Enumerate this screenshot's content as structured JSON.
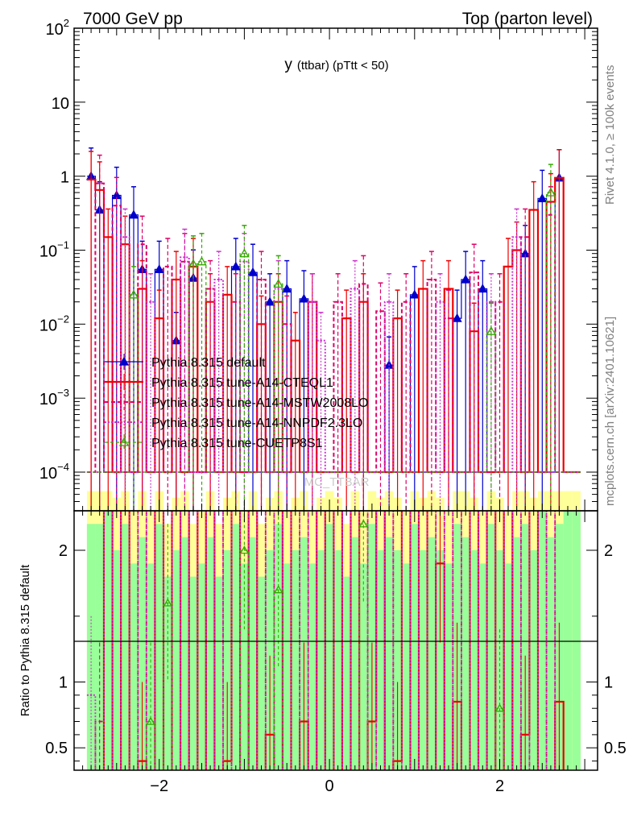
{
  "header": {
    "left": "7000 GeV pp",
    "right": "Top (parton level)"
  },
  "side_labels": {
    "rivet": "Rivet 4.1.0, ≥ 100k events",
    "mcplots": "mcplots.cern.ch [arXiv:2401.10621]"
  },
  "watermark": "MC_TTBAR",
  "chart_data": {
    "type": "line",
    "title": "y (ttbar) (pTtt < 50)",
    "title_main": "y",
    "title_sub": "(ttbar)  (pTtt < 50)",
    "xlabel": "",
    "ylabel": "",
    "ratio_ylabel": "Ratio to Pythia 8.315 default",
    "xlim": [
      -3.0,
      3.15
    ],
    "ylim": [
      3e-05,
      100
    ],
    "yscale": "log",
    "ratio_ylim": [
      0.33,
      2.3
    ],
    "x_ticks": [
      {
        "value": -2,
        "label": "−2"
      },
      {
        "value": 0,
        "label": "0"
      },
      {
        "value": 2,
        "label": "2"
      }
    ],
    "y_ticks": [
      {
        "value": 100,
        "base": "10",
        "exp": "2"
      },
      {
        "value": 10,
        "base": "10",
        "exp": ""
      },
      {
        "value": 1,
        "base": "1",
        "exp": ""
      },
      {
        "value": 0.1,
        "base": "10",
        "exp": "−1"
      },
      {
        "value": 0.01,
        "base": "10",
        "exp": "−2"
      },
      {
        "value": 0.001,
        "base": "10",
        "exp": "−3"
      },
      {
        "value": 0.0001,
        "base": "10",
        "exp": "−4"
      }
    ],
    "ratio_y_ticks": [
      {
        "value": 2,
        "label": "2"
      },
      {
        "value": 1,
        "label": "1"
      },
      {
        "value": 0.5,
        "label": "0.5"
      }
    ],
    "x": [
      -2.8,
      -2.7,
      -2.6,
      -2.5,
      -2.4,
      -2.3,
      -2.2,
      -2.1,
      -2.0,
      -1.9,
      -1.8,
      -1.7,
      -1.6,
      -1.5,
      -1.4,
      -1.3,
      -1.2,
      -1.1,
      -1.0,
      -0.9,
      -0.8,
      -0.7,
      -0.6,
      -0.5,
      -0.4,
      -0.3,
      -0.2,
      -0.1,
      0.0,
      0.1,
      0.2,
      0.3,
      0.4,
      0.5,
      0.6,
      0.7,
      0.8,
      0.9,
      1.0,
      1.1,
      1.2,
      1.3,
      1.4,
      1.5,
      1.6,
      1.7,
      1.8,
      1.9,
      2.0,
      2.1,
      2.2,
      2.3,
      2.4,
      2.5,
      2.6,
      2.7,
      2.8,
      2.9
    ],
    "series": [
      {
        "name": "Pythia 8.315 default",
        "color": "#0000cc",
        "dash": "",
        "width": 1.2,
        "marker": "triangle-filled",
        "values": [
          1.0,
          0.35,
          0.0001,
          0.55,
          0.0001,
          0.3,
          0.055,
          0.0001,
          0.055,
          0.0001,
          0.006,
          0.0001,
          0.042,
          0.0001,
          0.0001,
          0.0001,
          0.0001,
          0.06,
          0.0001,
          0.05,
          0.0001,
          0.02,
          0.0001,
          0.03,
          0.0001,
          0.022,
          0.0001,
          0.0001,
          0.0001,
          0.0001,
          0.0001,
          0.0001,
          0.0001,
          0.0001,
          0.0001,
          0.0028,
          0.0001,
          0.0001,
          0.025,
          0.0001,
          0.0001,
          0.0001,
          0.0001,
          0.012,
          0.04,
          0.0001,
          0.03,
          0.0001,
          0.0001,
          0.0001,
          0.0001,
          0.09,
          0.0001,
          0.5,
          0.0001,
          0.95,
          0.0001,
          0.0001
        ]
      },
      {
        "name": "Pythia 8.315 tune-A14-CTEQL1",
        "color": "#ee0000",
        "dash": "",
        "width": 2.2,
        "marker": "none",
        "values": [
          0.9,
          0.65,
          0.15,
          0.0001,
          0.12,
          0.0001,
          0.03,
          0.0001,
          0.012,
          0.0001,
          0.04,
          0.0001,
          0.06,
          0.0001,
          0.02,
          0.0001,
          0.025,
          0.0001,
          0.0001,
          0.0001,
          0.01,
          0.0001,
          0.02,
          0.0001,
          0.006,
          0.0001,
          0.02,
          0.0001,
          0.0001,
          0.0001,
          0.012,
          0.0001,
          0.02,
          0.0001,
          0.0001,
          0.0001,
          0.012,
          0.0001,
          0.0001,
          0.03,
          0.0001,
          0.0001,
          0.03,
          0.0001,
          0.0001,
          0.008,
          0.0001,
          0.0001,
          0.0001,
          0.06,
          0.1,
          0.0001,
          0.35,
          0.0001,
          0.45,
          0.95,
          0.0001,
          0.0001
        ]
      },
      {
        "name": "Pythia 8.315 tune-A14-MSTW2008LO",
        "color": "#dd0066",
        "dash": "5,3",
        "width": 2.0,
        "marker": "none",
        "values": [
          0.0001,
          0.8,
          0.0001,
          0.4,
          0.0001,
          0.0001,
          0.12,
          0.0001,
          0.0001,
          0.06,
          0.0001,
          0.07,
          0.0001,
          0.0001,
          0.03,
          0.0001,
          0.0001,
          0.02,
          0.0001,
          0.0001,
          0.04,
          0.0001,
          0.0001,
          0.01,
          0.0001,
          0.0001,
          0.02,
          0.0001,
          0.0001,
          0.02,
          0.0001,
          0.0001,
          0.035,
          0.0001,
          0.015,
          0.0001,
          0.0001,
          0.02,
          0.0001,
          0.0001,
          0.04,
          0.0001,
          0.012,
          0.0001,
          0.0001,
          0.05,
          0.0001,
          0.0001,
          0.02,
          0.0001,
          0.0001,
          0.15,
          0.0001,
          0.0001,
          0.3,
          0.0001,
          0.0001,
          0.0001
        ]
      },
      {
        "name": "Pythia 8.315 tune-A14-NNPDF2.3LO",
        "color": "#cc33cc",
        "dash": "2,2",
        "width": 2.0,
        "marker": "none",
        "values": [
          0.0001,
          0.0001,
          0.0001,
          0.0001,
          0.15,
          0.0001,
          0.0001,
          0.02,
          0.0001,
          0.0001,
          0.0001,
          0.08,
          0.0001,
          0.0001,
          0.0001,
          0.04,
          0.0001,
          0.0001,
          0.07,
          0.0001,
          0.0001,
          0.0001,
          0.03,
          0.0001,
          0.0001,
          0.0001,
          0.02,
          0.006,
          0.0001,
          0.0001,
          0.0001,
          0.03,
          0.0001,
          0.0001,
          0.0001,
          0.02,
          0.0001,
          0.0001,
          0.0001,
          0.0001,
          0.0001,
          0.02,
          0.0001,
          0.0001,
          0.0001,
          0.0001,
          0.0001,
          0.02,
          0.0001,
          0.0001,
          0.15,
          0.0001,
          0.0001,
          0.0001,
          0.0001,
          0.0001,
          0.0001,
          0.0001
        ]
      },
      {
        "name": "Pythia 8.315 tune-CUETP8S1",
        "color": "#33aa00",
        "dash": "4,3",
        "width": 1.2,
        "marker": "triangle-open",
        "values": [
          0.0001,
          0.0001,
          0.0001,
          0.0001,
          0.0001,
          0.025,
          0.0001,
          0.0001,
          0.0001,
          0.0001,
          0.0001,
          0.0001,
          0.065,
          0.07,
          0.0001,
          0.0001,
          0.0001,
          0.0001,
          0.09,
          0.0001,
          0.0001,
          0.0001,
          0.035,
          0.0001,
          0.0001,
          0.0001,
          0.0001,
          0.0001,
          0.0001,
          0.0001,
          0.0001,
          0.0001,
          0.0001,
          0.0001,
          0.0001,
          0.0001,
          0.0001,
          0.0001,
          0.0001,
          0.0001,
          0.0001,
          0.0001,
          0.0001,
          0.0001,
          0.0001,
          0.0001,
          0.0001,
          0.008,
          0.0001,
          0.0001,
          0.0001,
          0.0001,
          0.0001,
          0.0001,
          0.6,
          0.0001,
          0.0001,
          0.0001
        ]
      }
    ],
    "ratio_series": [
      {
        "name": "Pythia 8.315 tune-A14-CTEQL1",
        "color": "#ee0000",
        "dash": "",
        "width": 2.2,
        "marker": "none",
        "values": [
          0.3,
          0.3,
          2.4,
          0.3,
          2.4,
          0.3,
          0.4,
          0.3,
          2.4,
          0.3,
          2.4,
          0.3,
          2.4,
          0.3,
          2.4,
          0.3,
          0.4,
          2.4,
          0.3,
          2.4,
          0.3,
          0.6,
          0.3,
          2.4,
          0.3,
          0.7,
          0.3,
          2.4,
          0.3,
          2.4,
          0.3,
          2.4,
          0.3,
          0.7,
          2.4,
          0.3,
          0.4,
          2.4,
          0.3,
          2.4,
          0.3,
          1.9,
          0.3,
          0.85,
          0.3,
          2.4,
          0.3,
          2.4,
          0.3,
          2.4,
          0.3,
          0.6,
          2.4,
          0.3,
          0.3,
          0.85,
          0.3,
          0.3
        ]
      },
      {
        "name": "Pythia 8.315 tune-A14-MSTW2008LO",
        "color": "#dd0066",
        "dash": "5,3",
        "width": 1.8,
        "marker": "none",
        "values": [
          0.3,
          0.7,
          2.4,
          0.3,
          2.4,
          0.3,
          2.4,
          0.3,
          2.4,
          0.3,
          2.4,
          0.3,
          2.4,
          0.3,
          2.4,
          0.3,
          2.4,
          0.3,
          2.4,
          0.3,
          2.4,
          0.3,
          2.4,
          0.3,
          2.4,
          0.3,
          2.4,
          0.3,
          2.4,
          0.3,
          2.4,
          0.3,
          2.4,
          0.3,
          2.4,
          0.3,
          2.4,
          0.3,
          2.4,
          0.3,
          2.4,
          0.3,
          2.4,
          0.3,
          2.4,
          0.3,
          2.4,
          0.3,
          2.4,
          0.3,
          2.4,
          0.3,
          2.4,
          0.3,
          2.4,
          0.3,
          0.3,
          0.3
        ]
      },
      {
        "name": "Pythia 8.315 tune-A14-NNPDF2.3LO",
        "color": "#cc33cc",
        "dash": "2,2",
        "width": 1.8,
        "marker": "none",
        "values": [
          0.9,
          0.3,
          2.4,
          0.3,
          2.4,
          0.3,
          2.4,
          0.3,
          2.4,
          0.3,
          2.4,
          0.3,
          2.4,
          0.3,
          2.4,
          0.3,
          2.4,
          0.3,
          2.4,
          0.3,
          2.4,
          0.3,
          2.4,
          0.3,
          2.4,
          0.3,
          2.4,
          0.3,
          2.4,
          0.3,
          2.4,
          0.3,
          2.4,
          0.3,
          2.4,
          0.3,
          2.4,
          0.3,
          2.4,
          0.3,
          2.4,
          0.3,
          2.4,
          0.3,
          2.4,
          0.3,
          2.4,
          0.3,
          2.4,
          0.3,
          2.4,
          0.3,
          2.4,
          0.3,
          2.4,
          0.3,
          0.3,
          0.3
        ]
      },
      {
        "name": "Pythia 8.315 tune-CUETP8S1",
        "color": "#33aa00",
        "dash": "4,3",
        "width": 1.2,
        "marker": "triangle-open",
        "values": [
          0.3,
          0.3,
          0.3,
          0.3,
          0.3,
          0.3,
          0.3,
          0.7,
          0.3,
          1.6,
          0.3,
          0.3,
          0.3,
          0.3,
          0.3,
          0.3,
          0.3,
          0.3,
          2.0,
          0.3,
          0.3,
          0.3,
          1.7,
          0.3,
          0.3,
          0.3,
          0.3,
          0.3,
          0.3,
          0.3,
          0.3,
          0.3,
          2.2,
          0.3,
          0.3,
          0.3,
          0.3,
          0.3,
          0.3,
          0.3,
          0.3,
          0.3,
          0.3,
          0.3,
          0.3,
          0.3,
          0.3,
          0.3,
          0.8,
          0.3,
          0.3,
          0.3,
          0.3,
          0.3,
          0.3,
          0.3,
          0.3,
          0.3
        ]
      }
    ],
    "ratio_band": {
      "inner_color": "#99ff99",
      "outer_color": "#ffff99",
      "inner_half_width": [
        1.2,
        1.2,
        1.3,
        1.0,
        1.2,
        0.9,
        1.1,
        0.9,
        1.2,
        0.8,
        1.0,
        1.1,
        0.8,
        0.9,
        1.1,
        0.8,
        1.0,
        1.2,
        0.9,
        1.1,
        0.8,
        1.0,
        1.2,
        0.9,
        1.0,
        1.1,
        0.9,
        1.0,
        1.2,
        1.0,
        0.8,
        1.1,
        0.9,
        1.2,
        1.0,
        1.1,
        1.0,
        0.9,
        1.2,
        1.0,
        1.1,
        1.0,
        0.9,
        1.2,
        1.1,
        1.0,
        0.9,
        1.2,
        1.0,
        0.9,
        1.1,
        1.2,
        1.0,
        1.3,
        1.1,
        1.2,
        1.3,
        1.3
      ]
    }
  }
}
